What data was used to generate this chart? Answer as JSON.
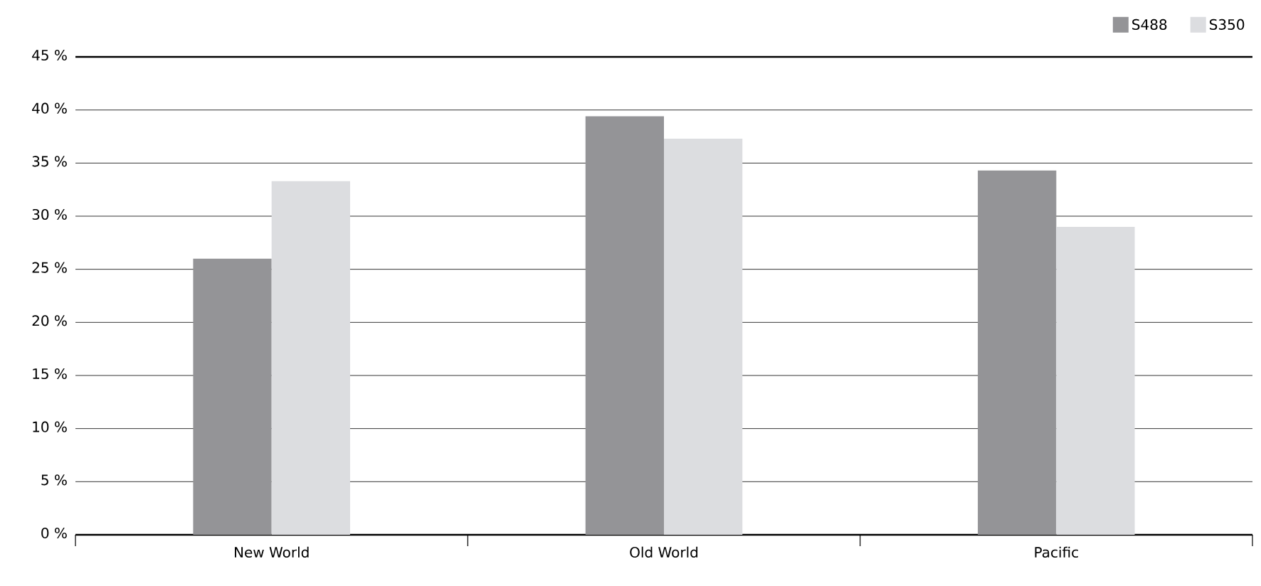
{
  "chart_data": {
    "type": "bar",
    "categories": [
      "New World",
      "Old World",
      "Pacific"
    ],
    "series": [
      {
        "name": "S488",
        "color": "#949497",
        "values": [
          26,
          39.4,
          34.3
        ]
      },
      {
        "name": "S350",
        "color": "#dcdde0",
        "values": [
          33.3,
          37.3,
          29
        ]
      }
    ],
    "ylim": [
      0,
      45
    ],
    "yticks": [
      {
        "value": 0,
        "label": "0 %"
      },
      {
        "value": 5,
        "label": "5 %"
      },
      {
        "value": 10,
        "label": "10 %"
      },
      {
        "value": 15,
        "label": "15 %"
      },
      {
        "value": 20,
        "label": "20 %"
      },
      {
        "value": 25,
        "label": "25 %"
      },
      {
        "value": 30,
        "label": "30 %"
      },
      {
        "value": 35,
        "label": "35 %"
      },
      {
        "value": 40,
        "label": "40 %"
      },
      {
        "value": 45,
        "label": "45 %"
      }
    ],
    "grid": "y",
    "legend": "top right"
  }
}
